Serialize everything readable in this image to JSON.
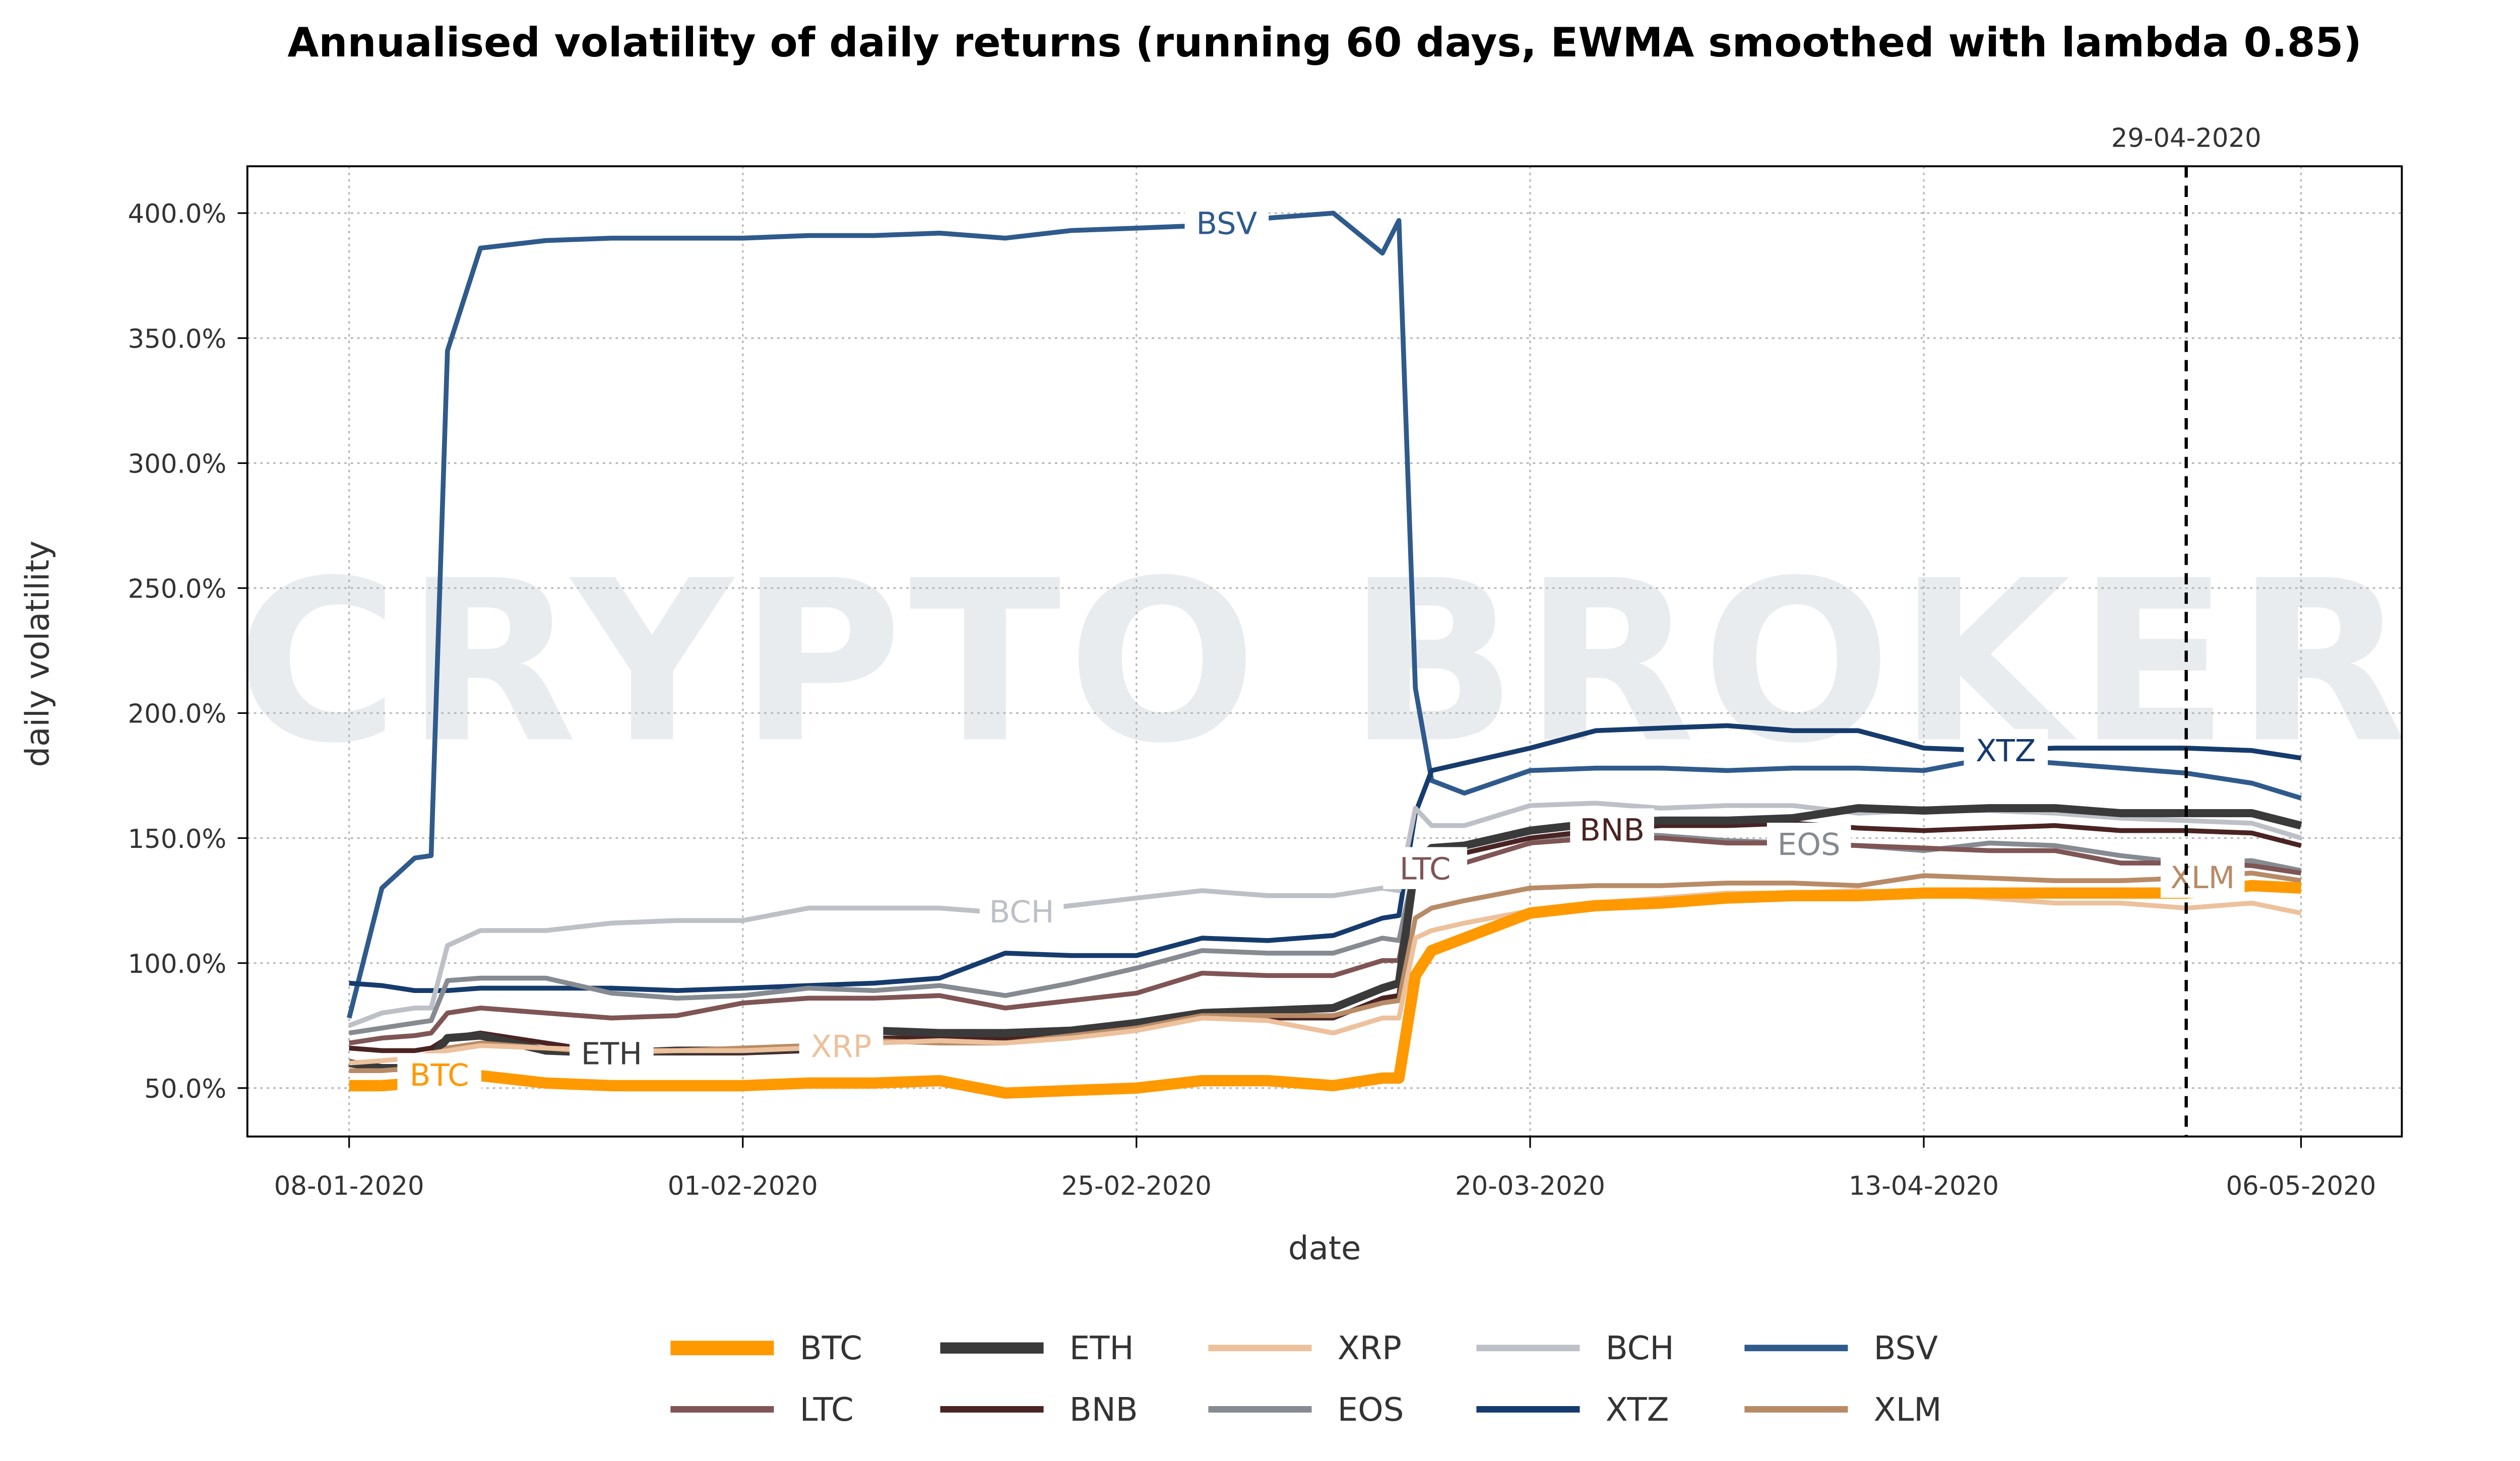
{
  "chart_data": {
    "type": "line",
    "title": "Annualised volatility of daily returns (running 60 days, EWMA smoothed with lambda 0.85)",
    "xlabel": "date",
    "ylabel": "daily volatility",
    "watermark": "CRYPTO BROKER",
    "grid": true,
    "legend_placement": "bottom",
    "ylim": [
      30,
      415
    ],
    "yticks": [
      50,
      100,
      150,
      200,
      250,
      300,
      350,
      400
    ],
    "ytick_labels": [
      "50.0%",
      "100.0%",
      "150.0%",
      "200.0%",
      "250.0%",
      "300.0%",
      "350.0%",
      "400.0%"
    ],
    "xticks": [
      "08-01-2020",
      "01-02-2020",
      "25-02-2020",
      "20-03-2020",
      "13-04-2020",
      "06-05-2020"
    ],
    "marker_line": {
      "date": "29-04-2020",
      "label": "29-04-2020"
    },
    "x": [
      "08-01-2020",
      "10-01-2020",
      "12-01-2020",
      "13-01-2020",
      "14-01-2020",
      "16-01-2020",
      "20-01-2020",
      "24-01-2020",
      "28-01-2020",
      "01-02-2020",
      "05-02-2020",
      "09-02-2020",
      "13-02-2020",
      "17-02-2020",
      "21-02-2020",
      "25-02-2020",
      "29-02-2020",
      "04-03-2020",
      "08-03-2020",
      "11-03-2020",
      "12-03-2020",
      "13-03-2020",
      "14-03-2020",
      "16-03-2020",
      "20-03-2020",
      "24-03-2020",
      "28-03-2020",
      "01-04-2020",
      "05-04-2020",
      "09-04-2020",
      "13-04-2020",
      "17-04-2020",
      "21-04-2020",
      "25-04-2020",
      "29-04-2020",
      "03-05-2020",
      "06-05-2020"
    ],
    "series": [
      {
        "name": "BSV",
        "color": "#2f5a8c",
        "values": [
          78,
          130,
          142,
          143,
          345,
          386,
          389,
          390,
          390,
          390,
          391,
          391,
          392,
          390,
          393,
          394,
          395,
          398,
          400,
          384,
          397,
          210,
          173,
          168,
          177,
          178,
          178,
          177,
          178,
          178,
          177,
          182,
          180,
          178,
          176,
          172,
          166
        ]
      },
      {
        "name": "XTZ",
        "color": "#163b6d",
        "values": [
          92,
          91,
          89,
          89,
          89,
          90,
          90,
          90,
          89,
          90,
          91,
          92,
          94,
          104,
          103,
          103,
          110,
          109,
          111,
          118,
          119,
          160,
          177,
          180,
          186,
          193,
          194,
          195,
          193,
          193,
          186,
          185,
          186,
          186,
          186,
          185,
          182
        ]
      },
      {
        "name": "BCH",
        "color": "#bdc0c7",
        "values": [
          75,
          80,
          82,
          82,
          107,
          113,
          113,
          116,
          117,
          117,
          122,
          122,
          122,
          120,
          123,
          126,
          129,
          127,
          127,
          130,
          129,
          162,
          155,
          155,
          163,
          164,
          162,
          163,
          163,
          160,
          161,
          161,
          160,
          158,
          157,
          156,
          150
        ]
      },
      {
        "name": "EOS",
        "color": "#868a91",
        "values": [
          72,
          74,
          76,
          77,
          93,
          94,
          94,
          88,
          86,
          87,
          90,
          89,
          91,
          87,
          92,
          98,
          105,
          104,
          104,
          110,
          109,
          140,
          142,
          144,
          150,
          152,
          151,
          149,
          148,
          147,
          145,
          148,
          147,
          143,
          140,
          141,
          137
        ]
      },
      {
        "name": "LTC",
        "color": "#7f5555",
        "values": [
          68,
          70,
          71,
          72,
          80,
          82,
          80,
          78,
          79,
          84,
          86,
          86,
          87,
          82,
          85,
          88,
          96,
          95,
          95,
          101,
          101,
          136,
          138,
          140,
          148,
          150,
          150,
          148,
          148,
          147,
          146,
          145,
          145,
          140,
          140,
          139,
          136
        ]
      },
      {
        "name": "BNB",
        "color": "#4a2323",
        "values": [
          66,
          65,
          65,
          66,
          70,
          72,
          68,
          64,
          64,
          64,
          65,
          70,
          70,
          70,
          72,
          74,
          78,
          78,
          78,
          86,
          87,
          138,
          142,
          144,
          150,
          153,
          155,
          155,
          156,
          154,
          153,
          154,
          155,
          153,
          153,
          152,
          147
        ]
      },
      {
        "name": "ETH",
        "color": "#3a3a3a",
        "values": [
          60,
          58,
          58,
          62,
          70,
          71,
          65,
          64,
          65,
          65,
          66,
          73,
          72,
          72,
          73,
          76,
          80,
          81,
          82,
          90,
          92,
          140,
          146,
          147,
          153,
          156,
          157,
          157,
          158,
          162,
          161,
          162,
          162,
          160,
          160,
          160,
          155
        ]
      },
      {
        "name": "XLM",
        "color": "#b88b67",
        "values": [
          57,
          57,
          58,
          62,
          66,
          68,
          66,
          64,
          65,
          66,
          67,
          69,
          68,
          68,
          71,
          74,
          79,
          79,
          79,
          84,
          85,
          118,
          122,
          125,
          130,
          131,
          131,
          132,
          132,
          131,
          135,
          134,
          133,
          133,
          134,
          136,
          133
        ]
      },
      {
        "name": "XRP",
        "color": "#ecc19c",
        "values": [
          60,
          61,
          62,
          64,
          65,
          67,
          66,
          65,
          65,
          65,
          66,
          68,
          69,
          68,
          70,
          73,
          78,
          77,
          72,
          78,
          78,
          110,
          113,
          116,
          121,
          124,
          126,
          128,
          128,
          129,
          128,
          126,
          124,
          124,
          122,
          124,
          120
        ]
      },
      {
        "name": "BTC",
        "color": "#ff9900",
        "values": [
          51,
          51,
          52,
          55,
          56,
          55,
          52,
          51,
          51,
          51,
          52,
          52,
          53,
          48,
          49,
          50,
          53,
          53,
          51,
          54,
          54,
          95,
          105,
          110,
          120,
          123,
          124,
          126,
          127,
          127,
          128,
          128,
          128,
          128,
          128,
          131,
          130
        ]
      }
    ],
    "legend": [
      "BTC",
      "ETH",
      "XRP",
      "BCH",
      "BSV",
      "LTC",
      "BNB",
      "EOS",
      "XTZ",
      "XLM"
    ]
  }
}
